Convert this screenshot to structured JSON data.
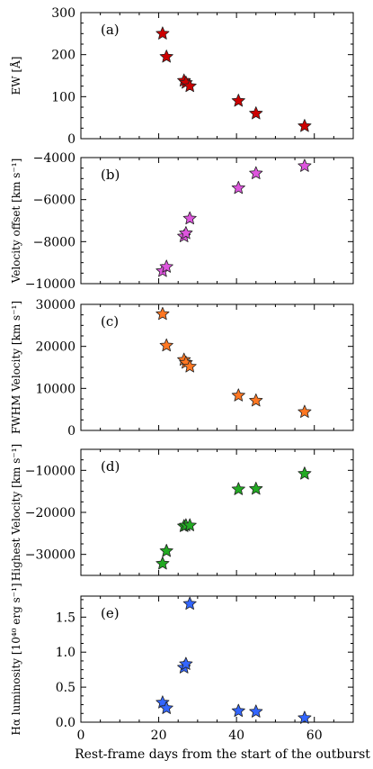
{
  "chart_data": [
    {
      "type": "scatter",
      "panel_label": "(a)",
      "ylabel": "EW [Å]",
      "ylim": [
        0,
        300
      ],
      "yticks": [
        "0",
        "100",
        "200",
        "300"
      ],
      "xlim": [
        0,
        70
      ],
      "points": [
        [
          21,
          250
        ],
        [
          22,
          195
        ],
        [
          26.5,
          138
        ],
        [
          27,
          133
        ],
        [
          28,
          125
        ],
        [
          40.5,
          90
        ],
        [
          45,
          60
        ],
        [
          57.5,
          30
        ]
      ],
      "color": "#cc0000",
      "marker": "star"
    },
    {
      "type": "scatter",
      "panel_label": "(b)",
      "ylabel": "Velocity offset [km s⁻¹]",
      "ylim": [
        -10000,
        -4000
      ],
      "yticks": [
        "−10000",
        "−8000",
        "−6000",
        "−4000"
      ],
      "xlim": [
        0,
        70
      ],
      "points": [
        [
          21,
          -9400
        ],
        [
          22,
          -9200
        ],
        [
          26.5,
          -7750
        ],
        [
          27,
          -7600
        ],
        [
          28,
          -6900
        ],
        [
          40.5,
          -5450
        ],
        [
          45,
          -4750
        ],
        [
          57.5,
          -4400
        ]
      ],
      "color": "#dd55dd",
      "marker": "star"
    },
    {
      "type": "scatter",
      "panel_label": "(c)",
      "ylabel": "FWHM Velocity [km s⁻¹]",
      "ylim": [
        0,
        30000
      ],
      "yticks": [
        "0",
        "10000",
        "20000",
        "30000"
      ],
      "xlim": [
        0,
        70
      ],
      "points": [
        [
          21,
          27700
        ],
        [
          22,
          20200
        ],
        [
          26.5,
          16800
        ],
        [
          27,
          16100
        ],
        [
          28,
          15200
        ],
        [
          40.5,
          8300
        ],
        [
          45,
          7100
        ],
        [
          57.5,
          4400
        ]
      ],
      "color": "#ff7722",
      "marker": "star"
    },
    {
      "type": "scatter",
      "panel_label": "(d)",
      "ylabel": "Highest Velocity [km s⁻¹]",
      "ylim": [
        -35000,
        -5000
      ],
      "yticks": [
        "−30000",
        "−20000",
        "−10000"
      ],
      "xlim": [
        0,
        70
      ],
      "points": [
        [
          21,
          -32200
        ],
        [
          22,
          -29200
        ],
        [
          26.5,
          -23300
        ],
        [
          27,
          -23100
        ],
        [
          28,
          -23100
        ],
        [
          40.5,
          -14500
        ],
        [
          45,
          -14400
        ],
        [
          57.5,
          -10800
        ]
      ],
      "color": "#22aa22",
      "marker": "star"
    },
    {
      "type": "scatter",
      "panel_label": "(e)",
      "ylabel": "Hα luminosity [10⁴⁰ erg s⁻¹]",
      "ylim": [
        0,
        1.8
      ],
      "yticks": [
        "0.0",
        "0.5",
        "1.0",
        "1.5"
      ],
      "xlim": [
        0,
        70
      ],
      "points": [
        [
          21,
          0.28
        ],
        [
          22,
          0.2
        ],
        [
          26.5,
          0.78
        ],
        [
          27,
          0.83
        ],
        [
          28,
          1.69
        ],
        [
          40.5,
          0.16
        ],
        [
          45,
          0.15
        ],
        [
          57.5,
          0.06
        ]
      ],
      "color": "#3366ff",
      "marker": "star"
    }
  ],
  "xticks": [
    "0",
    "20",
    "40",
    "60"
  ],
  "xlabel": "Rest-frame days from the start of the outburst"
}
